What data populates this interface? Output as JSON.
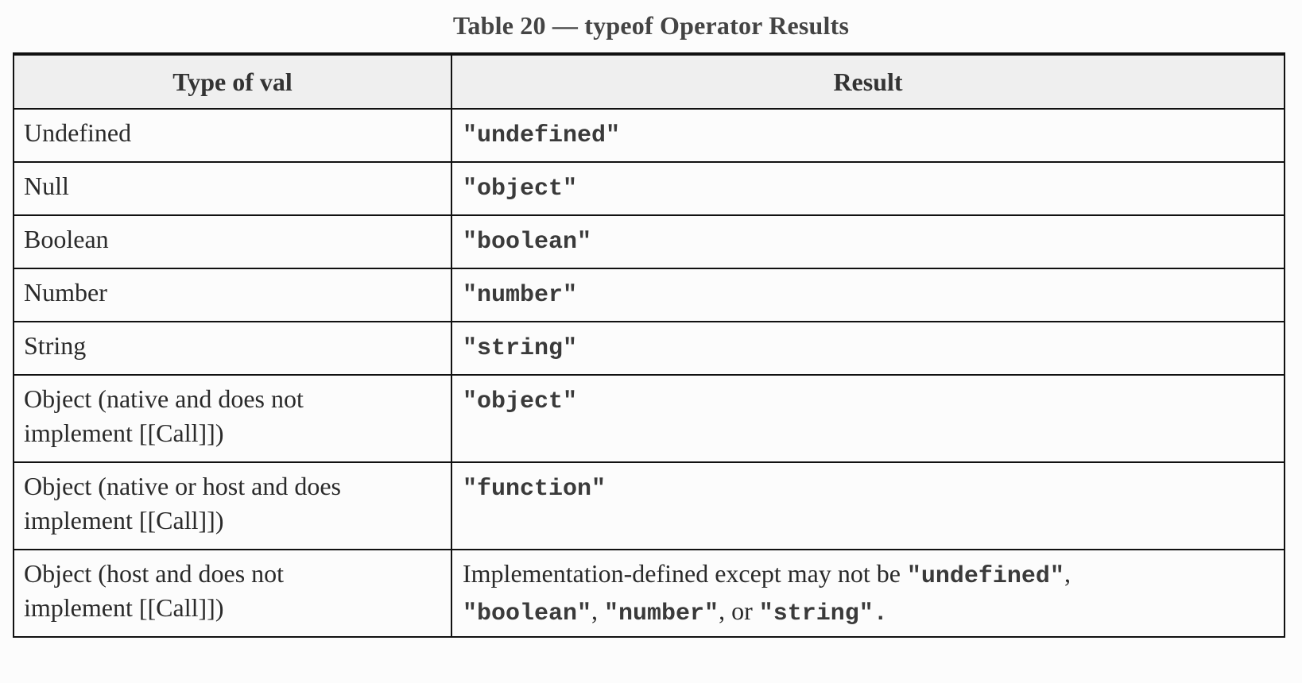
{
  "caption": "Table 20 — typeof Operator Results",
  "header": {
    "col1_prefix": "Type of ",
    "col1_bold": "val",
    "col2": "Result"
  },
  "rows": [
    {
      "type": "Undefined",
      "result": "\"undefined\""
    },
    {
      "type": "Null",
      "result": "\"object\""
    },
    {
      "type": "Boolean",
      "result": "\"boolean\""
    },
    {
      "type": "Number",
      "result": "\"number\""
    },
    {
      "type": "String",
      "result": "\"string\""
    },
    {
      "type_line1": "Object (native and does not",
      "type_line2": "implement [[Call]])",
      "result": "\"object\""
    },
    {
      "type_line1": "Object (native or host and does",
      "type_line2": "implement [[Call]])",
      "result": "\"function\""
    },
    {
      "type_line1": "Object (host and does not",
      "type_line2": "implement [[Call]])",
      "result_parts": {
        "text1": "Implementation-defined except may not be ",
        "code1": "\"undefined\"",
        "sep1": ",",
        "code2": "\"boolean\"",
        "sep2": ", ",
        "code3": "\"number\"",
        "sep3": ", or ",
        "code4": "\"string\"",
        "end": "."
      }
    }
  ]
}
